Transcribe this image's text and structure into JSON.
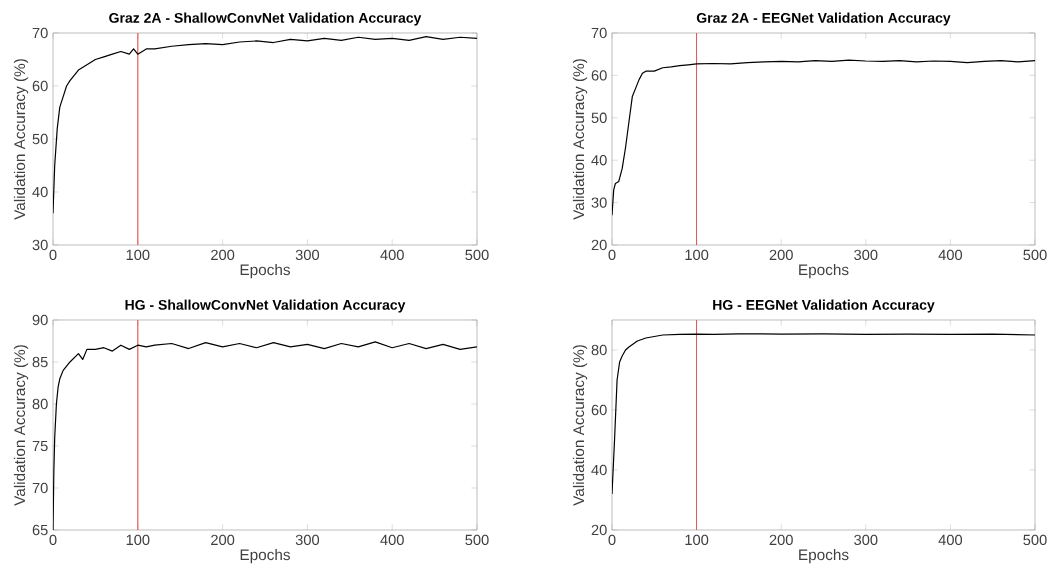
{
  "chart_data": [
    {
      "type": "line",
      "title": "Graz 2A - ShallowConvNet Validation Accuracy",
      "xlabel": "Epochs",
      "ylabel": "Validation Accuracy (%)",
      "xlim": [
        0,
        500
      ],
      "ylim": [
        30,
        70
      ],
      "xticks": [
        0,
        100,
        200,
        300,
        400,
        500
      ],
      "yticks": [
        30,
        40,
        50,
        60,
        70
      ],
      "marker": "none",
      "line_style": "solid",
      "ref_lines": [
        {
          "axis": "x",
          "value": 100,
          "color": "#e85a5a"
        }
      ],
      "series": [
        {
          "color": "#000000",
          "x": [
            0,
            2,
            5,
            8,
            12,
            16,
            20,
            25,
            30,
            35,
            40,
            45,
            50,
            60,
            70,
            80,
            90,
            95,
            100,
            110,
            120,
            140,
            160,
            180,
            200,
            220,
            240,
            260,
            280,
            300,
            320,
            340,
            360,
            380,
            400,
            420,
            440,
            460,
            480,
            500
          ],
          "values": [
            36,
            45,
            52,
            56,
            58,
            60,
            61,
            62,
            63,
            63.5,
            64,
            64.5,
            65,
            65.5,
            66,
            66.5,
            66,
            67,
            66,
            67,
            67,
            67.5,
            67.8,
            68,
            67.8,
            68.3,
            68.5,
            68.2,
            68.8,
            68.5,
            69,
            68.6,
            69.2,
            68.8,
            69,
            68.6,
            69.3,
            68.8,
            69.2,
            69
          ]
        }
      ]
    },
    {
      "type": "line",
      "title": "Graz 2A - EEGNet Validation Accuracy",
      "xlabel": "Epochs",
      "ylabel": "Validation Accuracy (%)",
      "xlim": [
        0,
        500
      ],
      "ylim": [
        20,
        70
      ],
      "xticks": [
        0,
        100,
        200,
        300,
        400,
        500
      ],
      "yticks": [
        20,
        30,
        40,
        50,
        60,
        70
      ],
      "marker": "none",
      "line_style": "solid",
      "ref_lines": [
        {
          "axis": "x",
          "value": 100,
          "color": "#e85a5a"
        }
      ],
      "series": [
        {
          "color": "#000000",
          "x": [
            0,
            2,
            4,
            8,
            12,
            16,
            20,
            24,
            28,
            32,
            36,
            40,
            50,
            60,
            70,
            80,
            90,
            100,
            120,
            140,
            160,
            180,
            200,
            220,
            240,
            260,
            280,
            300,
            320,
            340,
            360,
            380,
            400,
            420,
            440,
            460,
            480,
            500
          ],
          "values": [
            27,
            33,
            34.5,
            35,
            38,
            43,
            49,
            55,
            57,
            59,
            60.5,
            61,
            61,
            61.8,
            62,
            62.3,
            62.5,
            62.7,
            62.8,
            62.7,
            63,
            63.2,
            63.3,
            63.2,
            63.5,
            63.3,
            63.6,
            63.4,
            63.3,
            63.5,
            63.2,
            63.4,
            63.3,
            63,
            63.3,
            63.5,
            63.2,
            63.5
          ]
        }
      ]
    },
    {
      "type": "line",
      "title": "HG - ShallowConvNet Validation Accuracy",
      "xlabel": "Epochs",
      "ylabel": "Validation Accuracy (%)",
      "xlim": [
        0,
        500
      ],
      "ylim": [
        65,
        90
      ],
      "xticks": [
        0,
        100,
        200,
        300,
        400,
        500
      ],
      "yticks": [
        65,
        70,
        75,
        80,
        85,
        90
      ],
      "marker": "none",
      "line_style": "solid",
      "ref_lines": [
        {
          "axis": "x",
          "value": 100,
          "color": "#e85a5a"
        }
      ],
      "series": [
        {
          "color": "#000000",
          "x": [
            0,
            1,
            2,
            4,
            6,
            8,
            12,
            16,
            20,
            25,
            30,
            35,
            40,
            50,
            60,
            70,
            80,
            90,
            100,
            110,
            120,
            140,
            160,
            180,
            200,
            220,
            240,
            260,
            280,
            300,
            320,
            340,
            360,
            380,
            400,
            420,
            440,
            460,
            480,
            500
          ],
          "values": [
            65,
            72,
            76,
            80,
            82,
            83,
            84,
            84.5,
            85,
            85.5,
            86,
            85.3,
            86.5,
            86.5,
            86.7,
            86.3,
            87,
            86.5,
            87,
            86.8,
            87,
            87.2,
            86.6,
            87.3,
            86.8,
            87.2,
            86.7,
            87.3,
            86.8,
            87.1,
            86.6,
            87.2,
            86.8,
            87.4,
            86.7,
            87.2,
            86.6,
            87.1,
            86.5,
            86.8
          ]
        }
      ]
    },
    {
      "type": "line",
      "title": "HG - EEGNet Validation Accuracy",
      "xlabel": "Epochs",
      "ylabel": "Validation Accuracy (%)",
      "xlim": [
        0,
        500
      ],
      "ylim": [
        20,
        90
      ],
      "xticks": [
        0,
        100,
        200,
        300,
        400,
        500
      ],
      "yticks": [
        20,
        40,
        60,
        80
      ],
      "marker": "none",
      "line_style": "solid",
      "ref_lines": [
        {
          "axis": "x",
          "value": 100,
          "color": "#e85a5a"
        }
      ],
      "series": [
        {
          "color": "#000000",
          "x": [
            0,
            3,
            6,
            9,
            12,
            16,
            20,
            30,
            40,
            50,
            60,
            80,
            100,
            120,
            150,
            200,
            250,
            300,
            350,
            400,
            450,
            500
          ],
          "values": [
            32,
            50,
            70,
            76,
            78,
            80,
            81,
            83,
            84,
            84.5,
            85,
            85.2,
            85.3,
            85.2,
            85.4,
            85.3,
            85.4,
            85.2,
            85.3,
            85.2,
            85.3,
            85
          ]
        }
      ]
    }
  ]
}
